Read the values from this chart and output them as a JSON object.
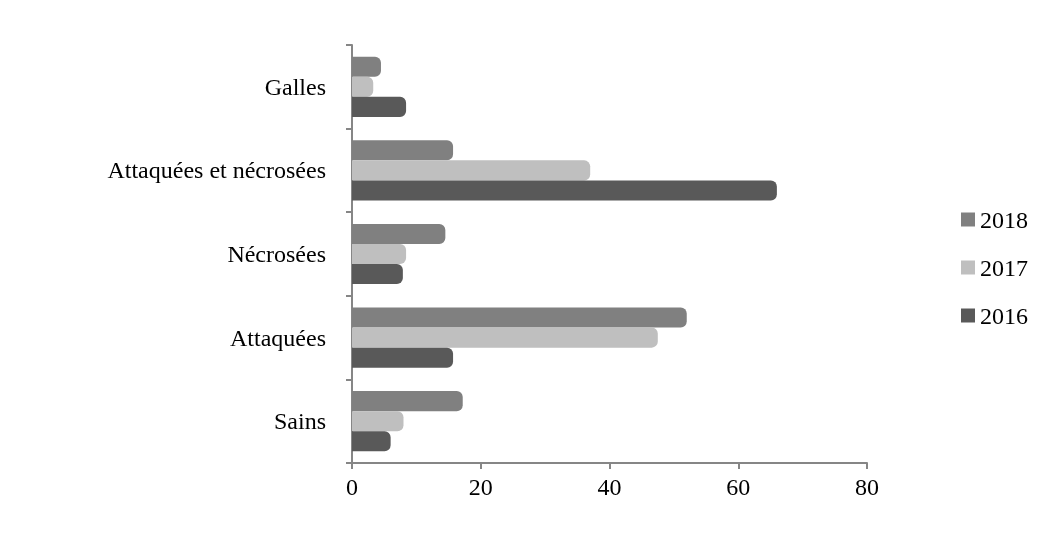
{
  "chart_data": {
    "type": "bar",
    "orientation": "horizontal",
    "categories": [
      "Galles",
      "Attaquées et nécrosées",
      "Nécrosées",
      "Attaquées",
      "Sains"
    ],
    "series": [
      {
        "name": "2018",
        "color": "#808080",
        "values": [
          4.5,
          15.7,
          14.5,
          52,
          17.2
        ]
      },
      {
        "name": "2017",
        "color": "#bfbfbf",
        "values": [
          3.3,
          37,
          8.4,
          47.5,
          8
        ]
      },
      {
        "name": "2016",
        "color": "#595959",
        "values": [
          8.4,
          66,
          7.9,
          15.7,
          6
        ]
      }
    ],
    "xlim": [
      0,
      80
    ],
    "xticks": [
      0,
      20,
      40,
      60,
      80
    ],
    "grid": false,
    "legend": "right"
  }
}
